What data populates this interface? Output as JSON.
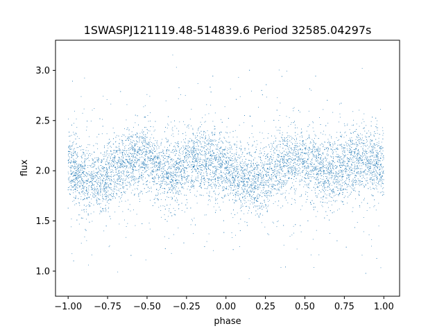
{
  "chart_data": {
    "type": "scatter",
    "title": "1SWASPJ121119.48-514839.6 Period 32585.04297s",
    "xlabel": "phase",
    "ylabel": "flux",
    "xlim": [
      -1.08,
      1.1
    ],
    "ylim": [
      0.75,
      3.3
    ],
    "x_ticks": [
      -1.0,
      -0.75,
      -0.5,
      -0.25,
      0.0,
      0.25,
      0.5,
      0.75,
      1.0
    ],
    "x_tick_labels": [
      "−1.00",
      "−0.75",
      "−0.50",
      "−0.25",
      "0.00",
      "0.25",
      "0.50",
      "0.75",
      "1.00"
    ],
    "y_ticks": [
      1.0,
      1.5,
      2.0,
      2.5,
      3.0
    ],
    "y_tick_labels": [
      "1.0",
      "1.5",
      "2.0",
      "2.5",
      "3.0"
    ],
    "grid": false,
    "legend": "none",
    "marker_color": "#1f77b4",
    "series": [
      {
        "phase_range": [
          -1.0,
          1.0
        ],
        "approx_points": 30000,
        "mean_flux": 2.01,
        "profile_phase": [
          -1.0,
          -0.9,
          -0.8,
          -0.7,
          -0.6,
          -0.5,
          -0.4,
          -0.3,
          -0.2,
          -0.1,
          0.0,
          0.1,
          0.2,
          0.3,
          0.4,
          0.5,
          0.6,
          0.7,
          0.8,
          0.9,
          1.0
        ],
        "profile_flux": [
          2.05,
          1.93,
          1.88,
          2.02,
          2.12,
          2.12,
          2.0,
          2.0,
          2.12,
          2.1,
          2.0,
          1.9,
          1.88,
          2.02,
          2.1,
          2.08,
          1.98,
          1.97,
          2.1,
          2.12,
          2.05
        ],
        "typical_spread": 0.16,
        "flux_min": 0.86,
        "flux_max": 3.17
      }
    ]
  }
}
